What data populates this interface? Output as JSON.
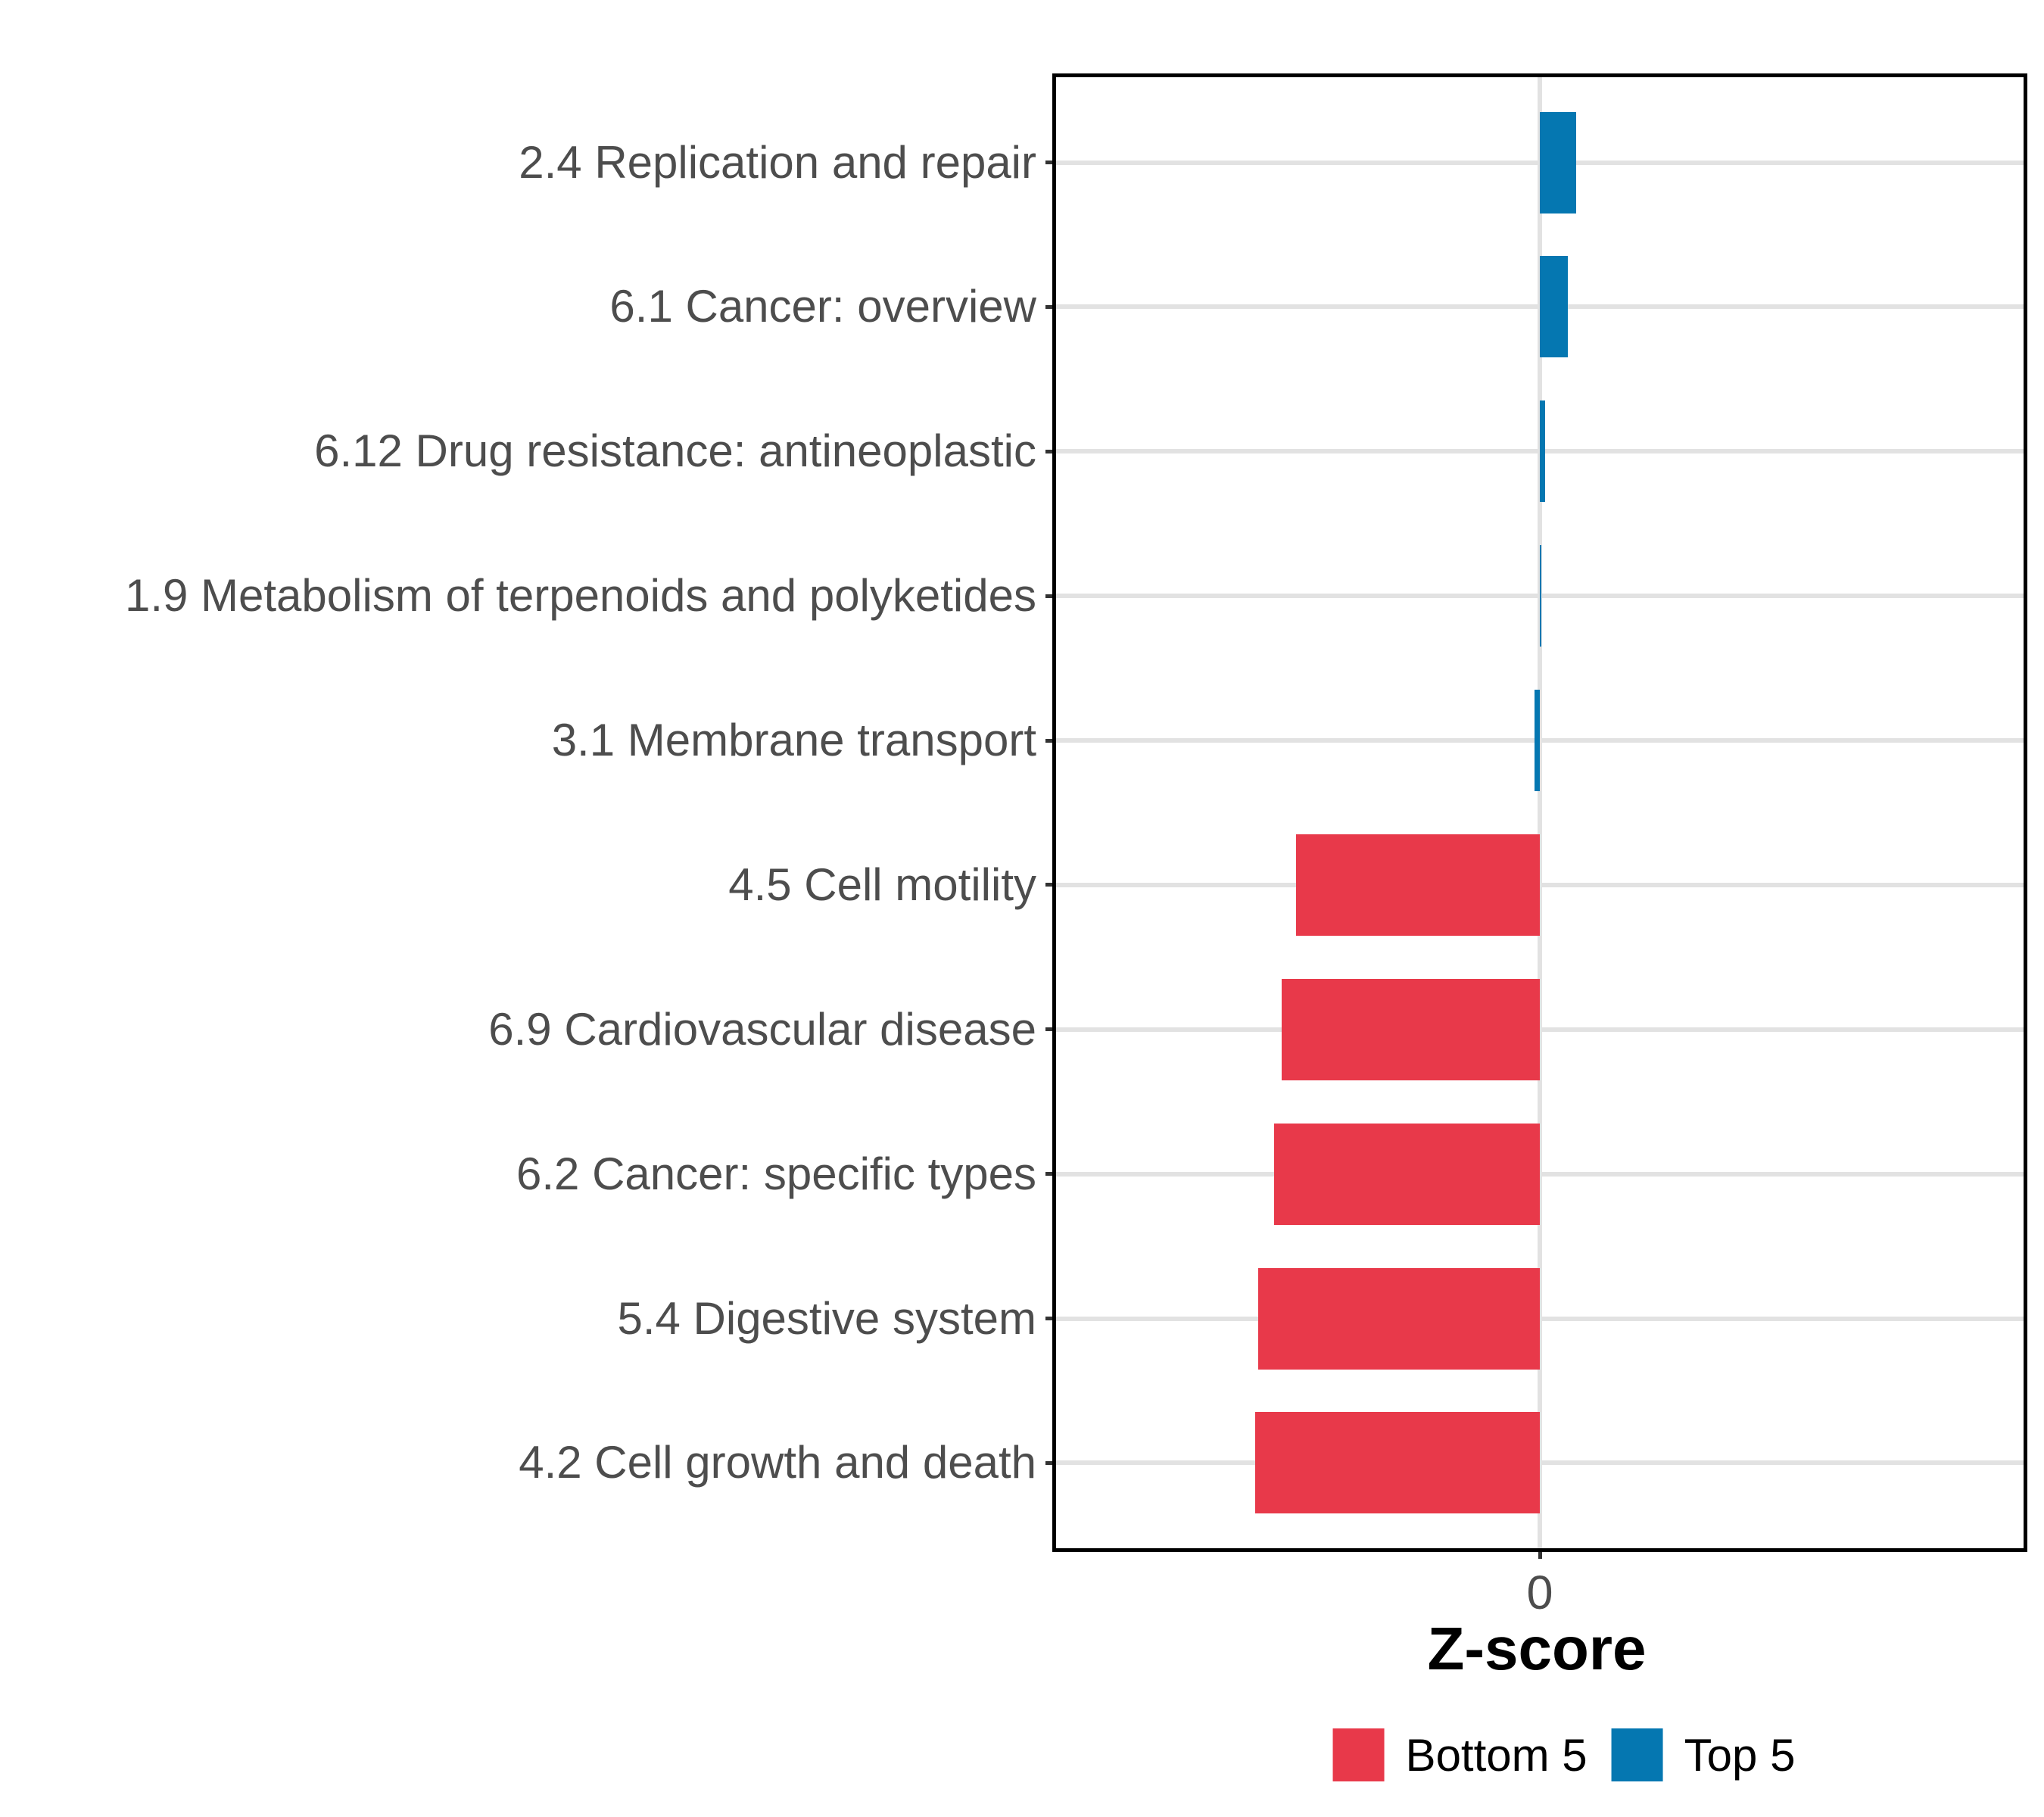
{
  "chart_data": {
    "type": "bar",
    "orientation": "horizontal",
    "title": "",
    "xlabel": "Z-score",
    "ylabel": "",
    "x_tick_labels": [
      "0"
    ],
    "x_tick_values": [
      0
    ],
    "xlim": [
      -0.55,
      0.55
    ],
    "grid": "major horizontal gridline at each category; vertical gridline at 0; black panel border; white background",
    "legend_position": "bottom",
    "legend": [
      {
        "label": "Bottom 5",
        "color": "#e8394a"
      },
      {
        "label": "Top 5",
        "color": "#0577b1"
      }
    ],
    "bars": [
      {
        "label": "2.4 Replication and repair",
        "value": 0.041,
        "group": "Top 5"
      },
      {
        "label": "6.1 Cancer: overview",
        "value": 0.032,
        "group": "Top 5"
      },
      {
        "label": "6.12 Drug resistance: antineoplastic",
        "value": 0.006,
        "group": "Top 5"
      },
      {
        "label": "1.9 Metabolism of terpenoids and polyketides",
        "value": 0.001,
        "group": "Top 5"
      },
      {
        "label": "3.1 Membrane transport",
        "value": -0.006,
        "group": "Top 5"
      },
      {
        "label": "4.5 Cell motility",
        "value": -0.276,
        "group": "Bottom 5"
      },
      {
        "label": "6.9 Cardiovascular disease",
        "value": -0.293,
        "group": "Bottom 5"
      },
      {
        "label": "6.2 Cancer: specific types",
        "value": -0.301,
        "group": "Bottom 5"
      },
      {
        "label": "5.4 Digestive system",
        "value": -0.319,
        "group": "Bottom 5"
      },
      {
        "label": "4.2 Cell growth and death",
        "value": -0.323,
        "group": "Bottom 5"
      }
    ],
    "colors": {
      "bottom5_red": "#e8394a",
      "top5_blue": "#0577b1",
      "gridline": "#e2e2e2",
      "axis_text": "#4d4d4d",
      "tick": "#333333",
      "panel_border": "#000000"
    }
  }
}
